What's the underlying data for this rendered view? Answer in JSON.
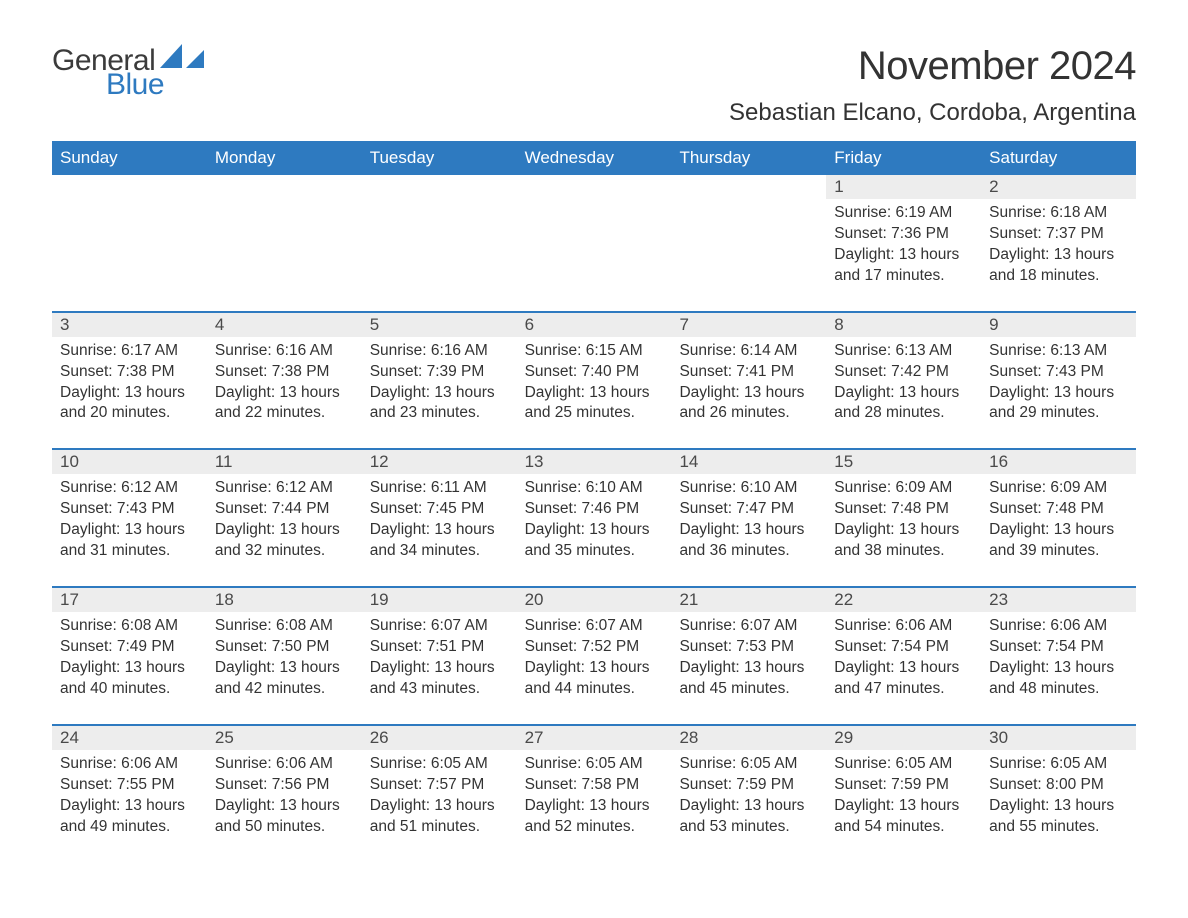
{
  "logo": {
    "general": "General",
    "blue": "Blue"
  },
  "header": {
    "month_title": "November 2024",
    "location": "Sebastian Elcano, Cordoba, Argentina"
  },
  "colors": {
    "header_bg": "#2e7ac0",
    "header_text": "#ffffff",
    "row_border": "#2e7ac0",
    "daynum_bg": "#ededed",
    "body_text": "#333333",
    "page_bg": "#ffffff"
  },
  "day_names": [
    "Sunday",
    "Monday",
    "Tuesday",
    "Wednesday",
    "Thursday",
    "Friday",
    "Saturday"
  ],
  "labels": {
    "sunrise": "Sunrise: ",
    "sunset": "Sunset: ",
    "daylight": "Daylight: "
  },
  "weeks": [
    [
      null,
      null,
      null,
      null,
      null,
      {
        "n": "1",
        "sunrise": "6:19 AM",
        "sunset": "7:36 PM",
        "daylight": "13 hours and 17 minutes."
      },
      {
        "n": "2",
        "sunrise": "6:18 AM",
        "sunset": "7:37 PM",
        "daylight": "13 hours and 18 minutes."
      }
    ],
    [
      {
        "n": "3",
        "sunrise": "6:17 AM",
        "sunset": "7:38 PM",
        "daylight": "13 hours and 20 minutes."
      },
      {
        "n": "4",
        "sunrise": "6:16 AM",
        "sunset": "7:38 PM",
        "daylight": "13 hours and 22 minutes."
      },
      {
        "n": "5",
        "sunrise": "6:16 AM",
        "sunset": "7:39 PM",
        "daylight": "13 hours and 23 minutes."
      },
      {
        "n": "6",
        "sunrise": "6:15 AM",
        "sunset": "7:40 PM",
        "daylight": "13 hours and 25 minutes."
      },
      {
        "n": "7",
        "sunrise": "6:14 AM",
        "sunset": "7:41 PM",
        "daylight": "13 hours and 26 minutes."
      },
      {
        "n": "8",
        "sunrise": "6:13 AM",
        "sunset": "7:42 PM",
        "daylight": "13 hours and 28 minutes."
      },
      {
        "n": "9",
        "sunrise": "6:13 AM",
        "sunset": "7:43 PM",
        "daylight": "13 hours and 29 minutes."
      }
    ],
    [
      {
        "n": "10",
        "sunrise": "6:12 AM",
        "sunset": "7:43 PM",
        "daylight": "13 hours and 31 minutes."
      },
      {
        "n": "11",
        "sunrise": "6:12 AM",
        "sunset": "7:44 PM",
        "daylight": "13 hours and 32 minutes."
      },
      {
        "n": "12",
        "sunrise": "6:11 AM",
        "sunset": "7:45 PM",
        "daylight": "13 hours and 34 minutes."
      },
      {
        "n": "13",
        "sunrise": "6:10 AM",
        "sunset": "7:46 PM",
        "daylight": "13 hours and 35 minutes."
      },
      {
        "n": "14",
        "sunrise": "6:10 AM",
        "sunset": "7:47 PM",
        "daylight": "13 hours and 36 minutes."
      },
      {
        "n": "15",
        "sunrise": "6:09 AM",
        "sunset": "7:48 PM",
        "daylight": "13 hours and 38 minutes."
      },
      {
        "n": "16",
        "sunrise": "6:09 AM",
        "sunset": "7:48 PM",
        "daylight": "13 hours and 39 minutes."
      }
    ],
    [
      {
        "n": "17",
        "sunrise": "6:08 AM",
        "sunset": "7:49 PM",
        "daylight": "13 hours and 40 minutes."
      },
      {
        "n": "18",
        "sunrise": "6:08 AM",
        "sunset": "7:50 PM",
        "daylight": "13 hours and 42 minutes."
      },
      {
        "n": "19",
        "sunrise": "6:07 AM",
        "sunset": "7:51 PM",
        "daylight": "13 hours and 43 minutes."
      },
      {
        "n": "20",
        "sunrise": "6:07 AM",
        "sunset": "7:52 PM",
        "daylight": "13 hours and 44 minutes."
      },
      {
        "n": "21",
        "sunrise": "6:07 AM",
        "sunset": "7:53 PM",
        "daylight": "13 hours and 45 minutes."
      },
      {
        "n": "22",
        "sunrise": "6:06 AM",
        "sunset": "7:54 PM",
        "daylight": "13 hours and 47 minutes."
      },
      {
        "n": "23",
        "sunrise": "6:06 AM",
        "sunset": "7:54 PM",
        "daylight": "13 hours and 48 minutes."
      }
    ],
    [
      {
        "n": "24",
        "sunrise": "6:06 AM",
        "sunset": "7:55 PM",
        "daylight": "13 hours and 49 minutes."
      },
      {
        "n": "25",
        "sunrise": "6:06 AM",
        "sunset": "7:56 PM",
        "daylight": "13 hours and 50 minutes."
      },
      {
        "n": "26",
        "sunrise": "6:05 AM",
        "sunset": "7:57 PM",
        "daylight": "13 hours and 51 minutes."
      },
      {
        "n": "27",
        "sunrise": "6:05 AM",
        "sunset": "7:58 PM",
        "daylight": "13 hours and 52 minutes."
      },
      {
        "n": "28",
        "sunrise": "6:05 AM",
        "sunset": "7:59 PM",
        "daylight": "13 hours and 53 minutes."
      },
      {
        "n": "29",
        "sunrise": "6:05 AM",
        "sunset": "7:59 PM",
        "daylight": "13 hours and 54 minutes."
      },
      {
        "n": "30",
        "sunrise": "6:05 AM",
        "sunset": "8:00 PM",
        "daylight": "13 hours and 55 minutes."
      }
    ]
  ]
}
